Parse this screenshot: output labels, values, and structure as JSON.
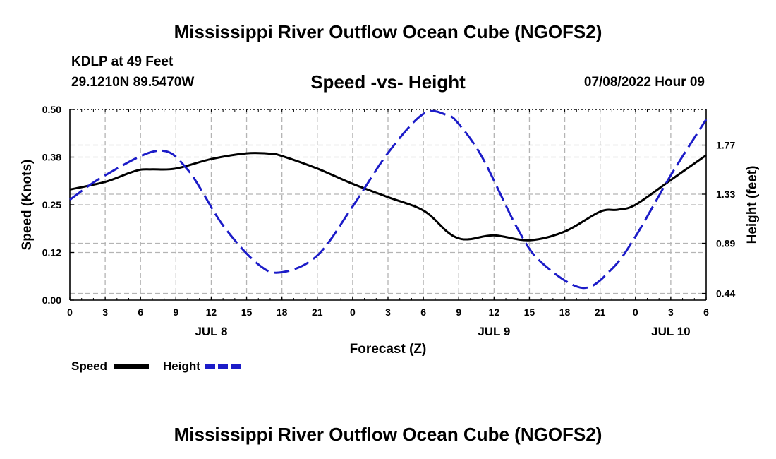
{
  "header": {
    "title": "Mississippi River Outflow Ocean Cube (NGOFS2)",
    "station": "KDLP at 49 Feet",
    "coords": "29.1210N  89.5470W",
    "subtitle": "Speed -vs- Height",
    "datetime": "07/08/2022 Hour 09"
  },
  "footer": {
    "title": "Mississippi River Outflow Ocean Cube (NGOFS2)"
  },
  "legend": {
    "speed_label": "Speed",
    "height_label": "Height"
  },
  "colors": {
    "speed": "#000000",
    "height": "#1c1cc8",
    "grid": "#b4b4b4"
  },
  "chart_data": {
    "type": "line",
    "xlabel": "Forecast (Z)",
    "ylabel_left": "Speed (Knots)",
    "ylabel_right": "Height (feet)",
    "x_range_hours": [
      0,
      54
    ],
    "x_ticks": [
      {
        "hour": 0,
        "label": "0"
      },
      {
        "hour": 3,
        "label": "3"
      },
      {
        "hour": 6,
        "label": "6"
      },
      {
        "hour": 9,
        "label": "9"
      },
      {
        "hour": 12,
        "label": "12"
      },
      {
        "hour": 15,
        "label": "15"
      },
      {
        "hour": 18,
        "label": "18"
      },
      {
        "hour": 21,
        "label": "21"
      },
      {
        "hour": 24,
        "label": "0"
      },
      {
        "hour": 27,
        "label": "3"
      },
      {
        "hour": 30,
        "label": "6"
      },
      {
        "hour": 33,
        "label": "9"
      },
      {
        "hour": 36,
        "label": "12"
      },
      {
        "hour": 39,
        "label": "15"
      },
      {
        "hour": 42,
        "label": "18"
      },
      {
        "hour": 45,
        "label": "21"
      },
      {
        "hour": 48,
        "label": "0"
      },
      {
        "hour": 51,
        "label": "3"
      },
      {
        "hour": 54,
        "label": "6"
      }
    ],
    "date_labels": [
      {
        "hour": 12,
        "label": "JUL 8"
      },
      {
        "hour": 36,
        "label": "JUL 9"
      },
      {
        "hour": 51,
        "label": "JUL 10"
      }
    ],
    "ylim_left": [
      0,
      0.5
    ],
    "y_ticks_left": [
      {
        "value": 0.0,
        "label": "0.00"
      },
      {
        "value": 0.125,
        "label": "0.12"
      },
      {
        "value": 0.25,
        "label": "0.25"
      },
      {
        "value": 0.375,
        "label": "0.38"
      },
      {
        "value": 0.5,
        "label": "0.50"
      }
    ],
    "ylim_right": [
      0.38,
      2.09
    ],
    "y_ticks_right": [
      {
        "value": 0.44,
        "label": "0.44"
      },
      {
        "value": 0.89,
        "label": "0.89"
      },
      {
        "value": 1.33,
        "label": "1.33"
      },
      {
        "value": 1.77,
        "label": "1.77"
      }
    ],
    "series": [
      {
        "name": "Speed",
        "axis": "left",
        "style": "solid",
        "x": [
          0,
          3,
          5,
          6,
          7,
          9,
          12,
          15,
          17,
          18,
          21,
          24,
          27,
          30,
          32,
          33,
          34,
          36,
          39,
          42,
          45,
          46.5,
          48,
          51,
          54
        ],
        "y": [
          0.29,
          0.31,
          0.333,
          0.342,
          0.343,
          0.345,
          0.37,
          0.385,
          0.384,
          0.378,
          0.345,
          0.305,
          0.27,
          0.235,
          0.18,
          0.162,
          0.16,
          0.17,
          0.157,
          0.18,
          0.232,
          0.237,
          0.25,
          0.315,
          0.38
        ]
      },
      {
        "name": "Height",
        "axis": "right",
        "style": "dashed",
        "x": [
          0,
          3,
          7.5,
          10,
          13,
          16,
          18,
          21,
          24,
          27,
          30,
          32,
          33,
          35,
          38,
          40,
          43.5,
          46,
          48,
          51,
          54
        ],
        "y": [
          1.28,
          1.5,
          1.72,
          1.55,
          1.05,
          0.7,
          0.63,
          0.78,
          1.22,
          1.7,
          2.05,
          2.04,
          1.96,
          1.66,
          1.02,
          0.72,
          0.49,
          0.66,
          0.95,
          1.5,
          2.0
        ]
      }
    ]
  }
}
